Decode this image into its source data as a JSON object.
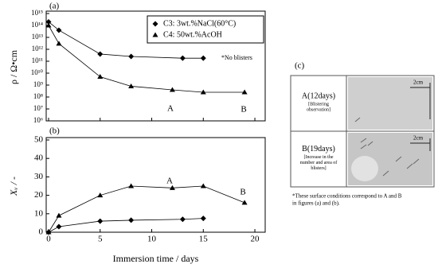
{
  "chart_data": [
    {
      "type": "line",
      "panel": "(a)",
      "ylabel": "ρ / Ω•cm",
      "log_scale": true,
      "xlim": [
        0,
        21
      ],
      "xticks": [
        0,
        5,
        10,
        15,
        20
      ],
      "xtick_labels": false,
      "ylim": [
        1000000,
        1000000000000000
      ],
      "yticks": [
        {
          "value": 1000000,
          "label": "10⁶"
        },
        {
          "value": 10000000,
          "label": "10⁷"
        },
        {
          "value": 100000000,
          "label": "10⁸"
        },
        {
          "value": 1000000000,
          "label": "10⁹"
        },
        {
          "value": 10000000000,
          "label": "10¹⁰"
        },
        {
          "value": 100000000000,
          "label": "10¹¹"
        },
        {
          "value": 1000000000000,
          "label": "10¹²"
        },
        {
          "value": 10000000000000,
          "label": "10¹³"
        },
        {
          "value": 100000000000000,
          "label": "10¹⁴"
        },
        {
          "value": 1000000000000000,
          "label": "10¹⁵"
        }
      ],
      "legend": "upper right",
      "series": [
        {
          "name": "C3: 3wt.%NaCl(60°C)",
          "marker": "diamond",
          "color": "#000000",
          "x": [
            0,
            1,
            5,
            8,
            13,
            15
          ],
          "values": [
            200000000000000,
            40000000000000,
            400000000000,
            250000000000,
            180000000000,
            180000000000
          ]
        },
        {
          "name": "C4: 50wt.%AcOH",
          "marker": "triangle",
          "color": "#000000",
          "x": [
            0,
            1,
            5,
            8,
            12,
            15,
            19
          ],
          "values": [
            100000000000000,
            3000000000000,
            5000000000,
            800000000,
            400000000,
            250000000,
            250000000
          ]
        }
      ],
      "annotations": [
        "*No blisters",
        "A",
        "B"
      ]
    },
    {
      "type": "line",
      "panel": "(b)",
      "ylabel": "Xᵥ / -",
      "xlabel": "Immersion time / days",
      "xlim": [
        0,
        21
      ],
      "xticks": [
        0,
        5,
        10,
        15,
        20
      ],
      "xtick_labels": true,
      "ylim": [
        0,
        50
      ],
      "yticks": [
        0,
        10,
        20,
        30,
        40,
        50
      ],
      "series": [
        {
          "marker": "diamond",
          "color": "#000000",
          "x": [
            0,
            1,
            5,
            8,
            13,
            15
          ],
          "values": [
            0,
            3,
            6,
            6.5,
            7,
            7.5
          ]
        },
        {
          "marker": "triangle",
          "color": "#000000",
          "x": [
            0,
            1,
            5,
            8,
            12,
            15,
            19
          ],
          "values": [
            0,
            9,
            20,
            25,
            24,
            25,
            16
          ]
        }
      ],
      "annotations": [
        "A",
        "B"
      ]
    }
  ],
  "panel_c": {
    "label": "(c)",
    "rows": [
      {
        "title": "A(12days)",
        "note": [
          "[Blistering",
          "observation]"
        ],
        "scale": "2cm"
      },
      {
        "title": "B(19days)",
        "note": [
          "[Increase in the",
          "number and area of",
          "blisters]"
        ],
        "scale": "2cm"
      }
    ],
    "footnote": [
      "*These surface conditions correspond to A and B",
      "in figures (a) and (b)."
    ]
  }
}
